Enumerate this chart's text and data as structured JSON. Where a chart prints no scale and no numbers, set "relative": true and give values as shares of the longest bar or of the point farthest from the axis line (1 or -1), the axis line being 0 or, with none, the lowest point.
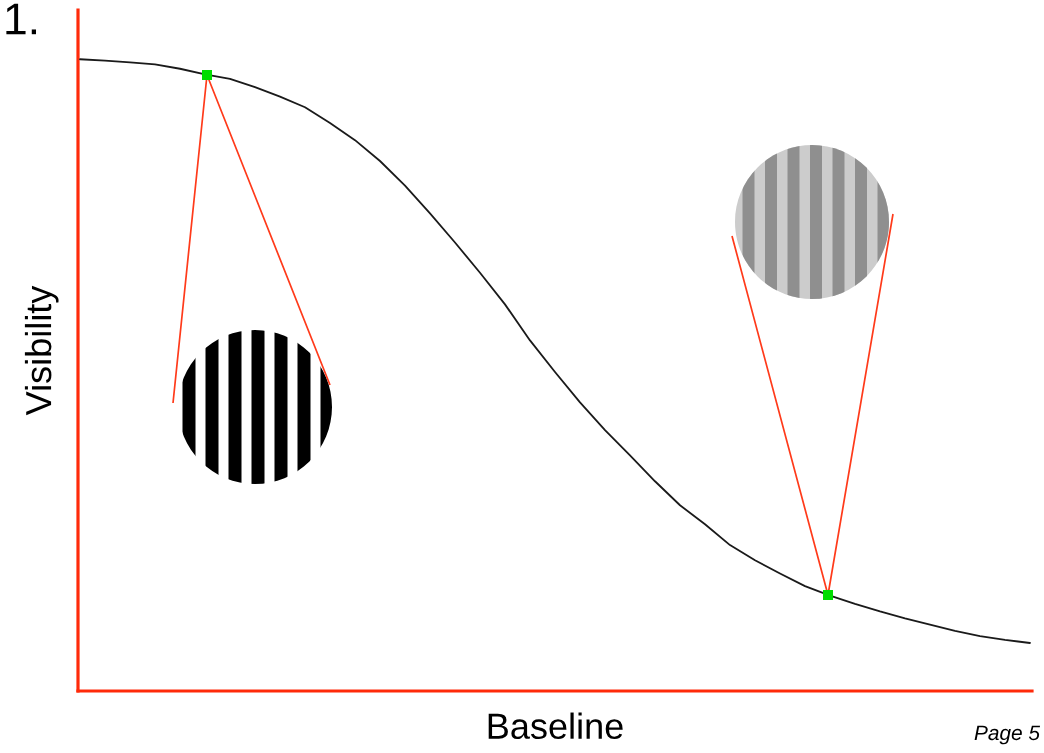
{
  "chart_data": {
    "type": "line",
    "relative": true,
    "xlabel": "Baseline",
    "ylabel": "Visibility",
    "annotations": [
      "1.",
      "Page 5"
    ],
    "categories": [
      null,
      null,
      null,
      null,
      null,
      null,
      null,
      null,
      null,
      null,
      null,
      null,
      null,
      null,
      null,
      null,
      null,
      null,
      null,
      null,
      null,
      null,
      null,
      null,
      null,
      null,
      null,
      null,
      null,
      null,
      null,
      null,
      null,
      null,
      null,
      null,
      null,
      null,
      null
    ],
    "series": [
      {
        "color": "#1a1a1a",
        "values": [
          1,
          0.998,
          0.995,
          0.992,
          0.985,
          0.976,
          0.969,
          0.956,
          0.941,
          0.924,
          0.899,
          0.872,
          0.839,
          0.8,
          0.756,
          0.71,
          0.662,
          0.612,
          0.555,
          0.505,
          0.457,
          0.413,
          0.373,
          0.332,
          0.294,
          0.264,
          0.231,
          0.207,
          0.186,
          0.166,
          0.151,
          0.138,
          0.126,
          0.115,
          0.105,
          0.095,
          0.087,
          0.081,
          0.076
        ]
      }
    ]
  }
}
